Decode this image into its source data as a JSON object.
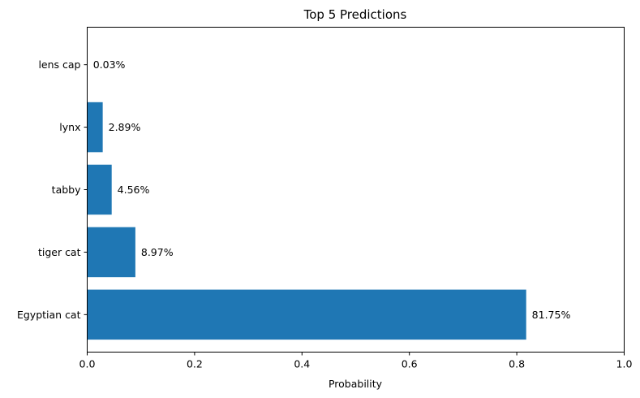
{
  "chart_data": {
    "type": "bar",
    "orientation": "horizontal",
    "title": "Top 5 Predictions",
    "xlabel": "Probability",
    "ylabel": "",
    "categories": [
      "Egyptian cat",
      "tiger cat",
      "tabby",
      "lynx",
      "lens cap"
    ],
    "values": [
      0.8175,
      0.0897,
      0.0456,
      0.0289,
      0.0003
    ],
    "data_labels": [
      "81.75%",
      "8.97%",
      "4.56%",
      "2.89%",
      "0.03%"
    ],
    "xlim": [
      0,
      1
    ],
    "xticks": [
      0,
      0.2,
      0.4,
      0.6,
      0.8,
      1.0
    ],
    "xtick_labels": [
      "0.0",
      "0.2",
      "0.4",
      "0.6",
      "0.8",
      "1.0"
    ],
    "bar_color": "#1f77b4",
    "grid": false,
    "legend": "none"
  }
}
